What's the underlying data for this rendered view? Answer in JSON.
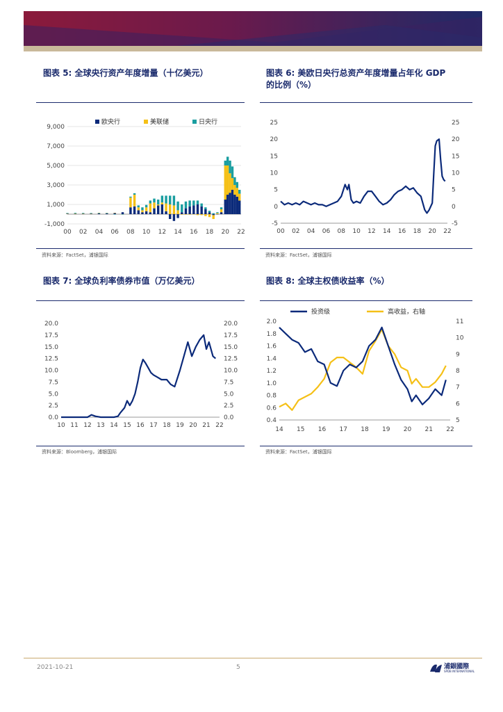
{
  "page": {
    "date": "2021-10-21",
    "page_number": "5",
    "logo_text": "浦銀國際",
    "logo_sub": "SPDB INTERNATIONAL"
  },
  "figures": {
    "f5": {
      "prefix": "图表 ",
      "num": "5",
      "title": ": 全球央行资产年度增量（十亿美元）",
      "source": "资料来源：FactSet，浦银国际"
    },
    "f6": {
      "prefix": "图表 ",
      "num": "6",
      "title": ": 美欧日央行总资产年度增量占年化 GDP",
      "title2": "的比例（%）",
      "source": "资料来源：FactSet，浦银国际"
    },
    "f7": {
      "prefix": "图表 ",
      "num": "7",
      "title": ": 全球负利率债券市值（万亿美元）",
      "source": "资料来源：Bloomberg，浦银国际"
    },
    "f8": {
      "prefix": "图表 ",
      "num": "8",
      "title": ": 全球主权债收益率（%）",
      "source": "资料来源：FactSet，浦银国际"
    }
  },
  "colors": {
    "navy": "#0b2a7a",
    "gold": "#f5c017",
    "teal": "#1a9ea0",
    "grid": "#e6e6e6"
  },
  "chart_data": [
    {
      "id": "f5",
      "type": "bar",
      "title": "全球央行资产年度增量（十亿美元）",
      "x_ticks": [
        "00",
        "02",
        "04",
        "06",
        "08",
        "10",
        "12",
        "14",
        "16",
        "18",
        "20",
        "22"
      ],
      "xlim": [
        2000,
        2022
      ],
      "ylim": [
        -1000,
        9000
      ],
      "y_ticks": [
        "-1,000",
        "1,000",
        "3,000",
        "5,000",
        "7,000",
        "9,000"
      ],
      "y_tick_values": [
        -1000,
        1000,
        3000,
        5000,
        7000,
        9000
      ],
      "legend": [
        "欧央行",
        "美联储",
        "日央行"
      ],
      "x": [
        2000,
        2001,
        2002,
        2003,
        2004,
        2005,
        2006,
        2007,
        2008,
        2008.5,
        2009,
        2009.5,
        2010,
        2010.5,
        2011,
        2011.5,
        2012,
        2012.5,
        2013,
        2013.5,
        2014,
        2014.5,
        2015,
        2015.5,
        2016,
        2016.5,
        2017,
        2017.5,
        2018,
        2018.5,
        2019,
        2019.5,
        2020,
        2020.3,
        2020.6,
        2020.9,
        2021.2,
        2021.5,
        2021.8
      ],
      "series": [
        {
          "name": "欧央行",
          "values": [
            50,
            30,
            40,
            60,
            80,
            90,
            120,
            200,
            700,
            800,
            400,
            200,
            300,
            200,
            600,
            900,
            1000,
            300,
            -500,
            -700,
            -400,
            200,
            600,
            800,
            900,
            1000,
            800,
            500,
            200,
            -100,
            0,
            200,
            1500,
            2000,
            2200,
            2500,
            2000,
            1800,
            1400
          ]
        },
        {
          "name": "美联储",
          "values": [
            30,
            40,
            30,
            20,
            30,
            20,
            20,
            -10,
            1000,
            1200,
            300,
            200,
            400,
            900,
            600,
            100,
            200,
            800,
            1000,
            900,
            400,
            -50,
            -50,
            -50,
            -20,
            -100,
            -100,
            -200,
            -300,
            -400,
            100,
            300,
            3500,
            3000,
            2000,
            1200,
            1000,
            900,
            700
          ]
        },
        {
          "name": "日央行",
          "values": [
            40,
            60,
            50,
            40,
            30,
            20,
            -40,
            -30,
            100,
            150,
            200,
            300,
            250,
            300,
            400,
            500,
            700,
            800,
            900,
            1000,
            900,
            800,
            700,
            600,
            500,
            400,
            300,
            200,
            150,
            100,
            100,
            200,
            500,
            900,
            1300,
            1200,
            800,
            600,
            400
          ]
        }
      ]
    },
    {
      "id": "f6",
      "type": "line",
      "title": "美欧日央行总资产年度增量占年化 GDP 的比例（%）",
      "x_ticks": [
        "00",
        "02",
        "04",
        "06",
        "08",
        "10",
        "12",
        "14",
        "16",
        "18",
        "20",
        "22"
      ],
      "xlim": [
        2000,
        2022
      ],
      "ylim": [
        -5,
        25
      ],
      "y_ticks": [
        "-5",
        "0",
        "5",
        "10",
        "15",
        "20",
        "25"
      ],
      "y_tick_values": [
        -5,
        0,
        5,
        10,
        15,
        20,
        25
      ],
      "x": [
        2000,
        2000.5,
        2001,
        2001.5,
        2002,
        2002.5,
        2003,
        2003.5,
        2004,
        2004.5,
        2005,
        2005.5,
        2006,
        2006.5,
        2007,
        2007.5,
        2008,
        2008.5,
        2008.8,
        2009,
        2009.3,
        2009.6,
        2010,
        2010.5,
        2011,
        2011.5,
        2012,
        2012.5,
        2013,
        2013.5,
        2014,
        2014.5,
        2015,
        2015.5,
        2016,
        2016.5,
        2017,
        2017.5,
        2018,
        2018.5,
        2019,
        2019.3,
        2019.6,
        2020,
        2020.2,
        2020.4,
        2020.6,
        2020.9,
        2021.1,
        2021.3,
        2021.5,
        2021.7
      ],
      "values": [
        1.5,
        0.5,
        1,
        0.5,
        1,
        0.5,
        1.5,
        1,
        0.5,
        1,
        0.5,
        0.5,
        0,
        0.5,
        1,
        1.5,
        3,
        6.5,
        5,
        6.5,
        2,
        1,
        1.5,
        1,
        3,
        4.5,
        4.5,
        3,
        1.5,
        0.5,
        1,
        2,
        3.5,
        4.5,
        5,
        6,
        5,
        5.5,
        4,
        3,
        -1,
        -2,
        -1,
        1,
        10,
        18,
        19.5,
        20,
        14,
        9,
        8,
        7.5
      ]
    },
    {
      "id": "f7",
      "type": "line",
      "title": "全球负利率债券市值（万亿美元）",
      "x_ticks": [
        "10",
        "11",
        "12",
        "13",
        "14",
        "15",
        "16",
        "17",
        "18",
        "19",
        "20",
        "21",
        "22"
      ],
      "xlim": [
        2010,
        2022
      ],
      "ylim": [
        0,
        20
      ],
      "y_ticks": [
        "0.0",
        "2.5",
        "5.0",
        "7.5",
        "10.0",
        "12.5",
        "15.0",
        "17.5",
        "20.0"
      ],
      "y_tick_values": [
        0,
        2.5,
        5,
        7.5,
        10,
        12.5,
        15,
        17.5,
        20
      ],
      "x": [
        2010,
        2011,
        2012,
        2012.3,
        2012.6,
        2013,
        2013.5,
        2014,
        2014.3,
        2014.5,
        2014.8,
        2015,
        2015.2,
        2015.4,
        2015.6,
        2015.8,
        2016,
        2016.2,
        2016.4,
        2016.6,
        2016.8,
        2017,
        2017.3,
        2017.6,
        2018,
        2018.3,
        2018.6,
        2019,
        2019.3,
        2019.6,
        2019.9,
        2020.2,
        2020.5,
        2020.8,
        2021,
        2021.2,
        2021.5,
        2021.7
      ],
      "values": [
        0,
        0,
        0,
        0.5,
        0.2,
        0,
        0,
        0,
        0.2,
        1.0,
        2.0,
        3.5,
        2.5,
        3.5,
        5.0,
        7.5,
        10.5,
        12.3,
        11.5,
        10.5,
        9.5,
        9.0,
        8.5,
        8.0,
        8.0,
        7.0,
        6.5,
        10.0,
        13.0,
        16.0,
        13.0,
        15.0,
        16.5,
        17.5,
        14.5,
        16.0,
        13.0,
        12.5
      ]
    },
    {
      "id": "f8",
      "type": "line",
      "title": "全球主权债收益率（%）",
      "x_ticks": [
        "14",
        "15",
        "16",
        "17",
        "18",
        "19",
        "20",
        "21",
        "22"
      ],
      "xlim": [
        2014,
        2022
      ],
      "ylim": [
        0.4,
        2.0
      ],
      "y_ticks": [
        "0.4",
        "0.6",
        "0.8",
        "1.0",
        "1.2",
        "1.4",
        "1.6",
        "1.8",
        "2.0"
      ],
      "y_tick_values": [
        0.4,
        0.6,
        0.8,
        1.0,
        1.2,
        1.4,
        1.6,
        1.8,
        2.0
      ],
      "y2lim": [
        5,
        11
      ],
      "y2_ticks": [
        "5",
        "6",
        "7",
        "8",
        "9",
        "10",
        "11"
      ],
      "y2_tick_values": [
        5,
        6,
        7,
        8,
        9,
        10,
        11
      ],
      "legend": [
        "投资级",
        "高收益，右轴"
      ],
      "x": [
        2014,
        2014.3,
        2014.6,
        2014.9,
        2015.2,
        2015.5,
        2015.8,
        2016.1,
        2016.4,
        2016.7,
        2017,
        2017.3,
        2017.6,
        2017.9,
        2018.2,
        2018.5,
        2018.8,
        2019.1,
        2019.4,
        2019.7,
        2020,
        2020.2,
        2020.4,
        2020.7,
        2021,
        2021.3,
        2021.6,
        2021.8
      ],
      "series": [
        {
          "name": "投资级",
          "axis": "left",
          "values": [
            1.9,
            1.8,
            1.7,
            1.65,
            1.5,
            1.55,
            1.35,
            1.3,
            1.0,
            0.95,
            1.2,
            1.3,
            1.25,
            1.35,
            1.6,
            1.7,
            1.9,
            1.6,
            1.3,
            1.05,
            0.9,
            0.7,
            0.8,
            0.65,
            0.75,
            0.9,
            0.8,
            1.05
          ]
        },
        {
          "name": "高收益，右轴",
          "axis": "right",
          "values": [
            5.8,
            6.0,
            5.6,
            6.2,
            6.4,
            6.6,
            7.0,
            7.5,
            8.5,
            8.8,
            8.8,
            8.5,
            8.2,
            7.8,
            9.2,
            9.8,
            10.5,
            9.5,
            9.0,
            8.2,
            8.0,
            7.2,
            7.5,
            7.0,
            7.0,
            7.3,
            7.8,
            8.3
          ]
        }
      ]
    }
  ]
}
